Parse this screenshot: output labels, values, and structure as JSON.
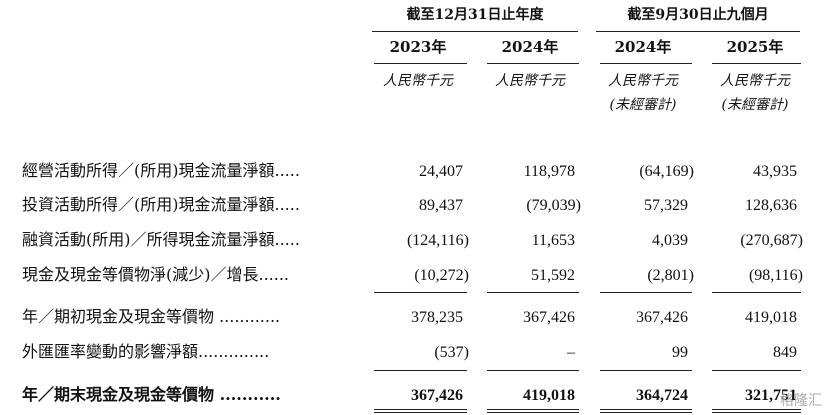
{
  "header": {
    "groups": [
      "截至12月31日止年度",
      "截至9月30日止九個月"
    ],
    "years": [
      "2023年",
      "2024年",
      "2024年",
      "2025年"
    ],
    "units": [
      "人民幣千元",
      "人民幣千元",
      "人民幣千元",
      "人民幣千元"
    ],
    "unaudited": [
      "(未經審計)",
      "(未經審計)"
    ]
  },
  "rows": [
    {
      "label": "經營活動所得／(所用)現金流量淨額.....",
      "values": [
        "24,407",
        "118,978",
        "(64,169)",
        "43,935"
      ]
    },
    {
      "label": "投資活動所得／(所用)現金流量淨額.....",
      "values": [
        "89,437",
        "(79,039)",
        "57,329",
        "128,636"
      ]
    },
    {
      "label": "融資活動(所用)／所得現金流量淨額.....",
      "values": [
        "(124,116)",
        "11,653",
        "4,039",
        "(270,687)"
      ]
    },
    {
      "label": "現金及現金等價物淨(減少)／增長......",
      "values": [
        "(10,272)",
        "51,592",
        "(2,801)",
        "(98,116)"
      ]
    },
    {
      "label": "年／期初現金及現金等價物 ............",
      "values": [
        "378,235",
        "367,426",
        "367,426",
        "419,018"
      ]
    },
    {
      "label": "外匯匯率變動的影響淨額..............",
      "values": [
        "(537)",
        "–",
        "99",
        "849"
      ]
    },
    {
      "label": "年／期末現金及現金等價物 ...........",
      "values": [
        "367,426",
        "419,018",
        "364,724",
        "321,751"
      ]
    }
  ],
  "watermark": "格隆汇"
}
